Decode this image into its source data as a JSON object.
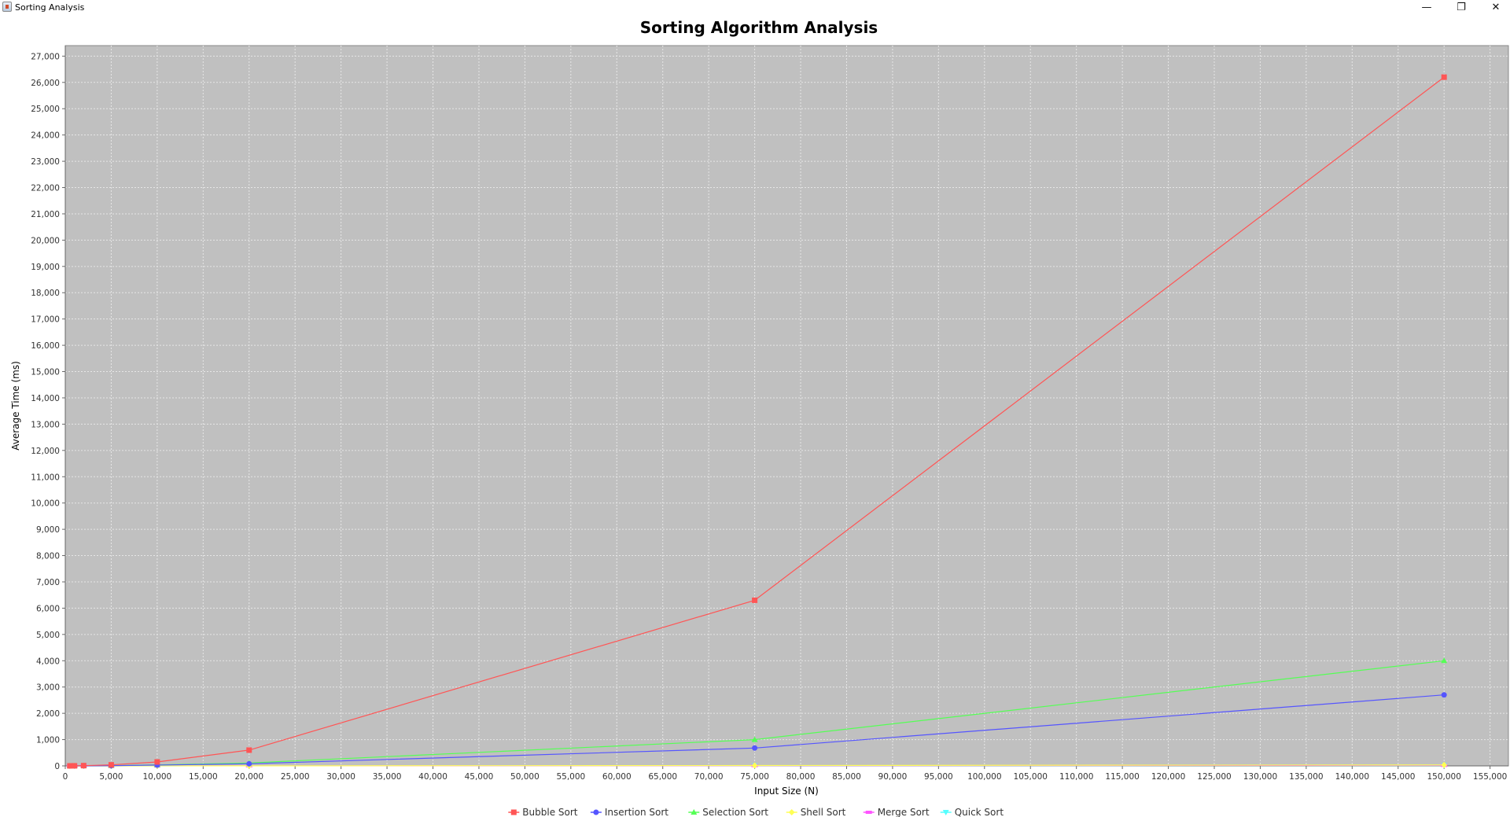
{
  "window": {
    "title": "Sorting Analysis",
    "minimize_glyph": "—",
    "maximize_glyph": "❐",
    "close_glyph": "✕"
  },
  "colors": {
    "plot_background": "#c0c0c0",
    "grid": "#e6e6e6",
    "bubble": "#ff5555",
    "insertion": "#5555ff",
    "selection": "#55ff55",
    "shell": "#ffff55",
    "merge": "#ff55ff",
    "quick": "#55ffff"
  },
  "chart_data": {
    "type": "line",
    "title": "Sorting Algorithm Analysis",
    "xlabel": "Input Size (N)",
    "ylabel": "Average Time (ms)",
    "xlim": [
      0,
      157000
    ],
    "ylim": [
      0,
      27400
    ],
    "xticks": [
      "0",
      "5,000",
      "10,000",
      "15,000",
      "20,000",
      "25,000",
      "30,000",
      "35,000",
      "40,000",
      "45,000",
      "50,000",
      "55,000",
      "60,000",
      "65,000",
      "70,000",
      "75,000",
      "80,000",
      "85,000",
      "90,000",
      "95,000",
      "100,000",
      "105,000",
      "110,000",
      "115,000",
      "120,000",
      "125,000",
      "130,000",
      "135,000",
      "140,000",
      "145,000",
      "150,000",
      "155,000"
    ],
    "yticks": [
      "0",
      "1,000",
      "2,000",
      "3,000",
      "4,000",
      "5,000",
      "6,000",
      "7,000",
      "8,000",
      "9,000",
      "10,000",
      "11,000",
      "12,000",
      "13,000",
      "14,000",
      "15,000",
      "16,000",
      "17,000",
      "18,000",
      "19,000",
      "20,000",
      "21,000",
      "22,000",
      "23,000",
      "24,000",
      "25,000",
      "26,000",
      "27,000"
    ],
    "grid": true,
    "legend_position": "bottom",
    "x": [
      500,
      1000,
      2000,
      5000,
      10000,
      20000,
      75000,
      150000
    ],
    "series": [
      {
        "name": "Bubble Sort",
        "color": "#ff5555",
        "marker": "square",
        "values": [
          1,
          3,
          10,
          40,
          150,
          600,
          6300,
          26200
        ]
      },
      {
        "name": "Insertion Sort",
        "color": "#5555ff",
        "marker": "circle",
        "values": [
          0,
          1,
          2,
          8,
          30,
          80,
          680,
          2700
        ]
      },
      {
        "name": "Selection Sort",
        "color": "#55ff55",
        "marker": "triangle-up",
        "values": [
          0,
          1,
          2,
          10,
          40,
          110,
          1000,
          4000
        ]
      },
      {
        "name": "Shell Sort",
        "color": "#ffff55",
        "marker": "diamond",
        "values": [
          0,
          0,
          0,
          1,
          2,
          4,
          15,
          35
        ]
      },
      {
        "name": "Merge Sort",
        "color": "#ff55ff",
        "marker": "rect",
        "values": [
          0,
          0,
          0,
          1,
          2,
          3,
          10,
          20
        ]
      },
      {
        "name": "Quick Sort",
        "color": "#55ffff",
        "marker": "triangle-down",
        "values": [
          0,
          0,
          0,
          1,
          1,
          2,
          8,
          15
        ]
      }
    ]
  }
}
